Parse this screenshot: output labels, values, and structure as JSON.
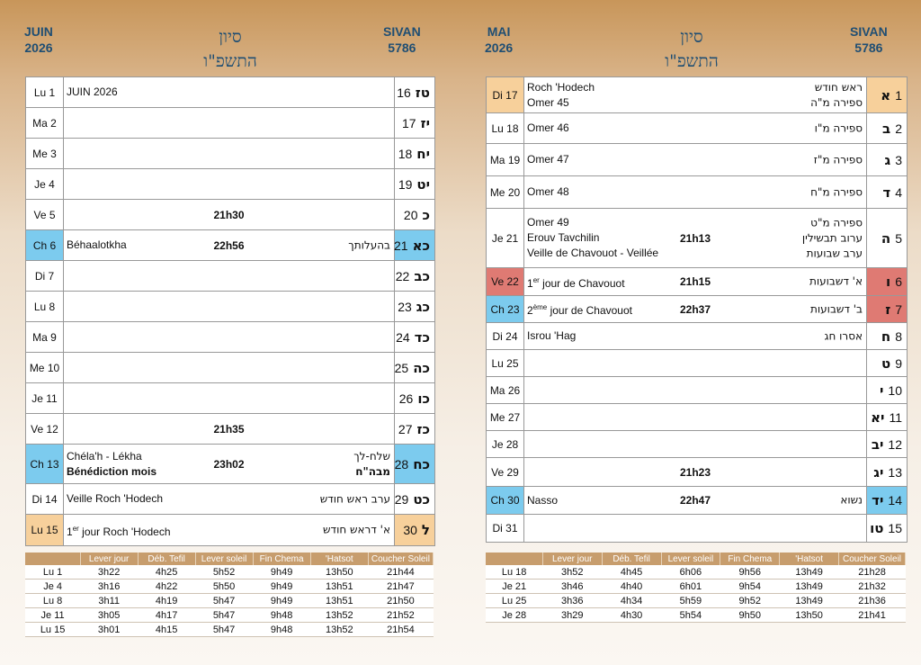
{
  "left": {
    "month_fr": "JUIN",
    "year_fr": "2026",
    "month_he": "סיון",
    "year_he": "התשפ\"ו",
    "month_en": "SIVAN",
    "year_he_num": "5786",
    "days": [
      {
        "day": "Lu  1",
        "hl": "",
        "lines": [
          "JUIN 2026"
        ],
        "heb": [],
        "time": "",
        "hnum": "16",
        "hlet": "טז"
      },
      {
        "day": "Ma  2",
        "hl": "",
        "lines": [],
        "heb": [],
        "time": "",
        "hnum": "17",
        "hlet": "יז"
      },
      {
        "day": "Me  3",
        "hl": "",
        "lines": [],
        "heb": [],
        "time": "",
        "hnum": "18",
        "hlet": "יח"
      },
      {
        "day": "Je  4",
        "hl": "",
        "lines": [],
        "heb": [],
        "time": "",
        "hnum": "19",
        "hlet": "יט"
      },
      {
        "day": "Ve  5",
        "hl": "",
        "lines": [],
        "heb": [],
        "time": "21h30",
        "hnum": "20",
        "hlet": "כ"
      },
      {
        "day": "Ch  6",
        "hl": "blue",
        "lines": [
          "Béhaalotkha"
        ],
        "heb": [
          "בהעלותך"
        ],
        "time": "22h56",
        "hnum": "21",
        "hlet": "כא"
      },
      {
        "day": "Di  7",
        "hl": "",
        "lines": [],
        "heb": [],
        "time": "",
        "hnum": "22",
        "hlet": "כב"
      },
      {
        "day": "Lu  8",
        "hl": "",
        "lines": [],
        "heb": [],
        "time": "",
        "hnum": "23",
        "hlet": "כג"
      },
      {
        "day": "Ma  9",
        "hl": "",
        "lines": [],
        "heb": [],
        "time": "",
        "hnum": "24",
        "hlet": "כד"
      },
      {
        "day": "Me 10",
        "hl": "",
        "lines": [],
        "heb": [],
        "time": "",
        "hnum": "25",
        "hlet": "כה"
      },
      {
        "day": "Je 11",
        "hl": "",
        "lines": [],
        "heb": [],
        "time": "",
        "hnum": "26",
        "hlet": "כו"
      },
      {
        "day": "Ve 12",
        "hl": "",
        "lines": [],
        "heb": [],
        "time": "21h35",
        "hnum": "27",
        "hlet": "כז"
      },
      {
        "day": "Ch 13",
        "hl": "blue",
        "lines": [
          "Chéla'h - Lékha",
          "Bénédiction mois"
        ],
        "heb": [
          "שלח-לך",
          "מבה\"ח"
        ],
        "time": "23h02",
        "hnum": "28",
        "hlet": "כח"
      },
      {
        "day": "Di 14",
        "hl": "",
        "lines": [
          "Veille Roch 'Hodech"
        ],
        "heb": [
          "ערב ראש חודש"
        ],
        "time": "",
        "hnum": "29",
        "hlet": "כט"
      },
      {
        "day": "Lu 15",
        "hl": "orange",
        "lines": [
          "1er jour Roch 'Hodech"
        ],
        "heb": [
          "א' דראש חודש"
        ],
        "time": "",
        "hnum": "30",
        "hlet": "ל"
      }
    ],
    "zmanim": {
      "headers": [
        "",
        "Lever jour",
        "Déb. Tefil",
        "Lever soleil",
        "Fin Chema",
        "'Hatsot",
        "Coucher Soleil"
      ],
      "rows": [
        [
          "Lu  1",
          "3h22",
          "4h25",
          "5h52",
          "9h49",
          "13h50",
          "21h44"
        ],
        [
          "Je  4",
          "3h16",
          "4h22",
          "5h50",
          "9h49",
          "13h51",
          "21h47"
        ],
        [
          "Lu  8",
          "3h11",
          "4h19",
          "5h47",
          "9h49",
          "13h51",
          "21h50"
        ],
        [
          "Je 11",
          "3h05",
          "4h17",
          "5h47",
          "9h48",
          "13h52",
          "21h52"
        ],
        [
          "Lu 15",
          "3h01",
          "4h15",
          "5h47",
          "9h48",
          "13h52",
          "21h54"
        ]
      ]
    }
  },
  "right": {
    "month_fr": "MAI",
    "year_fr": "2026",
    "month_he": "סיון",
    "year_he": "התשפ\"ו",
    "month_en": "SIVAN",
    "year_he_num": "5786",
    "days": [
      {
        "day": "Di 17",
        "hl": "orange",
        "lines": [
          "Roch 'Hodech",
          "Omer  45"
        ],
        "heb": [
          "ראש חודש",
          "ספירה מ\"ה"
        ],
        "time": "",
        "hnum": "1",
        "hlet": "א"
      },
      {
        "day": "Lu 18",
        "hl": "",
        "lines": [
          "Omer  46"
        ],
        "heb": [
          "ספירה מ\"ו"
        ],
        "time": "",
        "hnum": "2",
        "hlet": "ב"
      },
      {
        "day": "Ma 19",
        "hl": "",
        "lines": [
          "Omer  47"
        ],
        "heb": [
          "ספירה מ\"ז"
        ],
        "time": "",
        "hnum": "3",
        "hlet": "ג"
      },
      {
        "day": "Me 20",
        "hl": "",
        "lines": [
          "Omer  48"
        ],
        "heb": [
          "ספירה מ\"ח"
        ],
        "time": "",
        "hnum": "4",
        "hlet": "ד"
      },
      {
        "day": "Je 21",
        "hl": "",
        "lines": [
          "Omer  49",
          "Erouv Tavchilin",
          "Veille de Chavouot - Veillée"
        ],
        "heb": [
          "ספירה מ\"ט",
          "ערוב תבשילין",
          "ערב שבועות"
        ],
        "time": "21h13",
        "hnum": "5",
        "hlet": "ה"
      },
      {
        "day": "Ve 22",
        "hl": "red",
        "lines": [
          "1er jour de Chavouot"
        ],
        "heb": [
          "א' דשבועות"
        ],
        "time": "21h15",
        "hnum": "6",
        "hlet": "ו"
      },
      {
        "day": "Ch 23",
        "hl": "blue",
        "lines": [
          "2ème jour de Chavouot"
        ],
        "heb": [
          "ב' דשבועות"
        ],
        "time": "22h37",
        "hnum": "7",
        "hlet": "ז",
        "hlet_red": true
      },
      {
        "day": "Di 24",
        "hl": "",
        "lines": [
          "Isrou 'Hag"
        ],
        "heb": [
          "אסרו חג"
        ],
        "time": "",
        "hnum": "8",
        "hlet": "ח"
      },
      {
        "day": "Lu 25",
        "hl": "",
        "lines": [],
        "heb": [],
        "time": "",
        "hnum": "9",
        "hlet": "ט"
      },
      {
        "day": "Ma 26",
        "hl": "",
        "lines": [],
        "heb": [],
        "time": "",
        "hnum": "10",
        "hlet": "י"
      },
      {
        "day": "Me 27",
        "hl": "",
        "lines": [],
        "heb": [],
        "time": "",
        "hnum": "11",
        "hlet": "יא"
      },
      {
        "day": "Je 28",
        "hl": "",
        "lines": [],
        "heb": [],
        "time": "",
        "hnum": "12",
        "hlet": "יב"
      },
      {
        "day": "Ve 29",
        "hl": "",
        "lines": [],
        "heb": [],
        "time": "21h23",
        "hnum": "13",
        "hlet": "יג"
      },
      {
        "day": "Ch 30",
        "hl": "blue",
        "lines": [
          "Nasso"
        ],
        "heb": [
          "נשוא"
        ],
        "time": "22h47",
        "hnum": "14",
        "hlet": "יד"
      },
      {
        "day": "Di 31",
        "hl": "",
        "lines": [],
        "heb": [],
        "time": "",
        "hnum": "15",
        "hlet": "טו"
      }
    ],
    "zmanim": {
      "headers": [
        "",
        "Lever jour",
        "Déb. Tefil",
        "Lever soleil",
        "Fin Chema",
        "'Hatsot",
        "Coucher Soleil"
      ],
      "rows": [
        [
          "Lu 18",
          "3h52",
          "4h45",
          "6h06",
          "9h56",
          "13h49",
          "21h28"
        ],
        [
          "Je 21",
          "3h46",
          "4h40",
          "6h01",
          "9h54",
          "13h49",
          "21h32"
        ],
        [
          "Lu 25",
          "3h36",
          "4h34",
          "5h59",
          "9h52",
          "13h49",
          "21h36"
        ],
        [
          "Je 28",
          "3h29",
          "4h30",
          "5h54",
          "9h50",
          "13h50",
          "21h41"
        ]
      ]
    }
  },
  "colors": {
    "title_blue": "#1f4e73",
    "shabbat_blue": "#7ccbee",
    "roch_hodech_orange": "#f7d09b",
    "yom_tov_red": "#df7a73",
    "table_header": "#c79d6d"
  }
}
